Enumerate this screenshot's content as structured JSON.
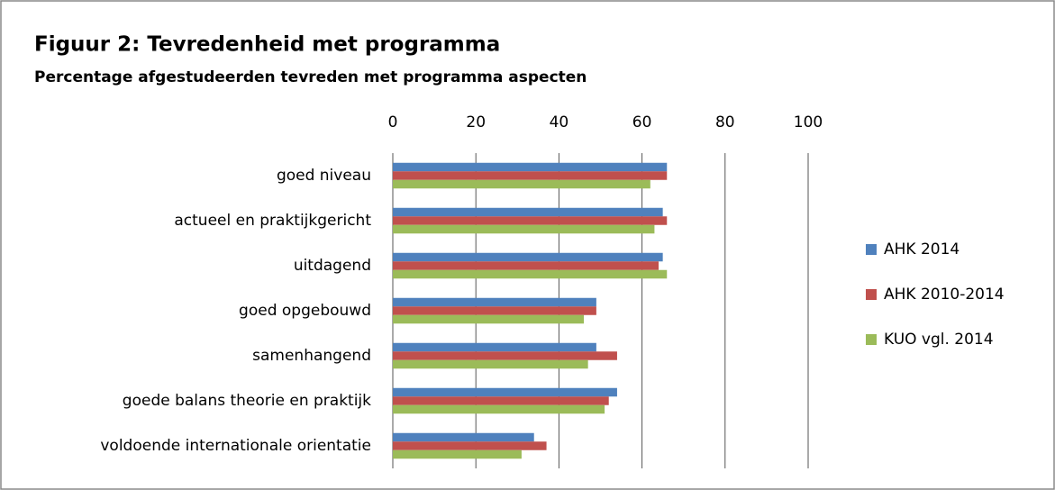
{
  "chart_data": {
    "type": "hbar",
    "title": "Figuur 2: Tevredenheid met programma",
    "subtitle": "Percentage afgestudeerden tevreden met programma aspecten",
    "categories": [
      "goed niveau",
      "actueel en praktijkgericht",
      "uitdagend",
      "goed opgebouwd",
      "samenhangend",
      "goede balans theorie en praktijk",
      "voldoende internationale orientatie"
    ],
    "series": [
      {
        "name": "AHK 2014",
        "color": "#4f81bd",
        "values": [
          66,
          65,
          65,
          49,
          49,
          54,
          34
        ]
      },
      {
        "name": "AHK 2010-2014",
        "color": "#c0504d",
        "values": [
          66,
          66,
          64,
          49,
          54,
          52,
          37
        ]
      },
      {
        "name": "KUO vgl. 2014",
        "color": "#9bbb59",
        "values": [
          62,
          63,
          66,
          46,
          47,
          51,
          31
        ]
      }
    ],
    "xlim": [
      0,
      100
    ],
    "xticks": [
      0,
      20,
      40,
      60,
      80,
      100
    ],
    "grid": true,
    "legend": "right"
  }
}
